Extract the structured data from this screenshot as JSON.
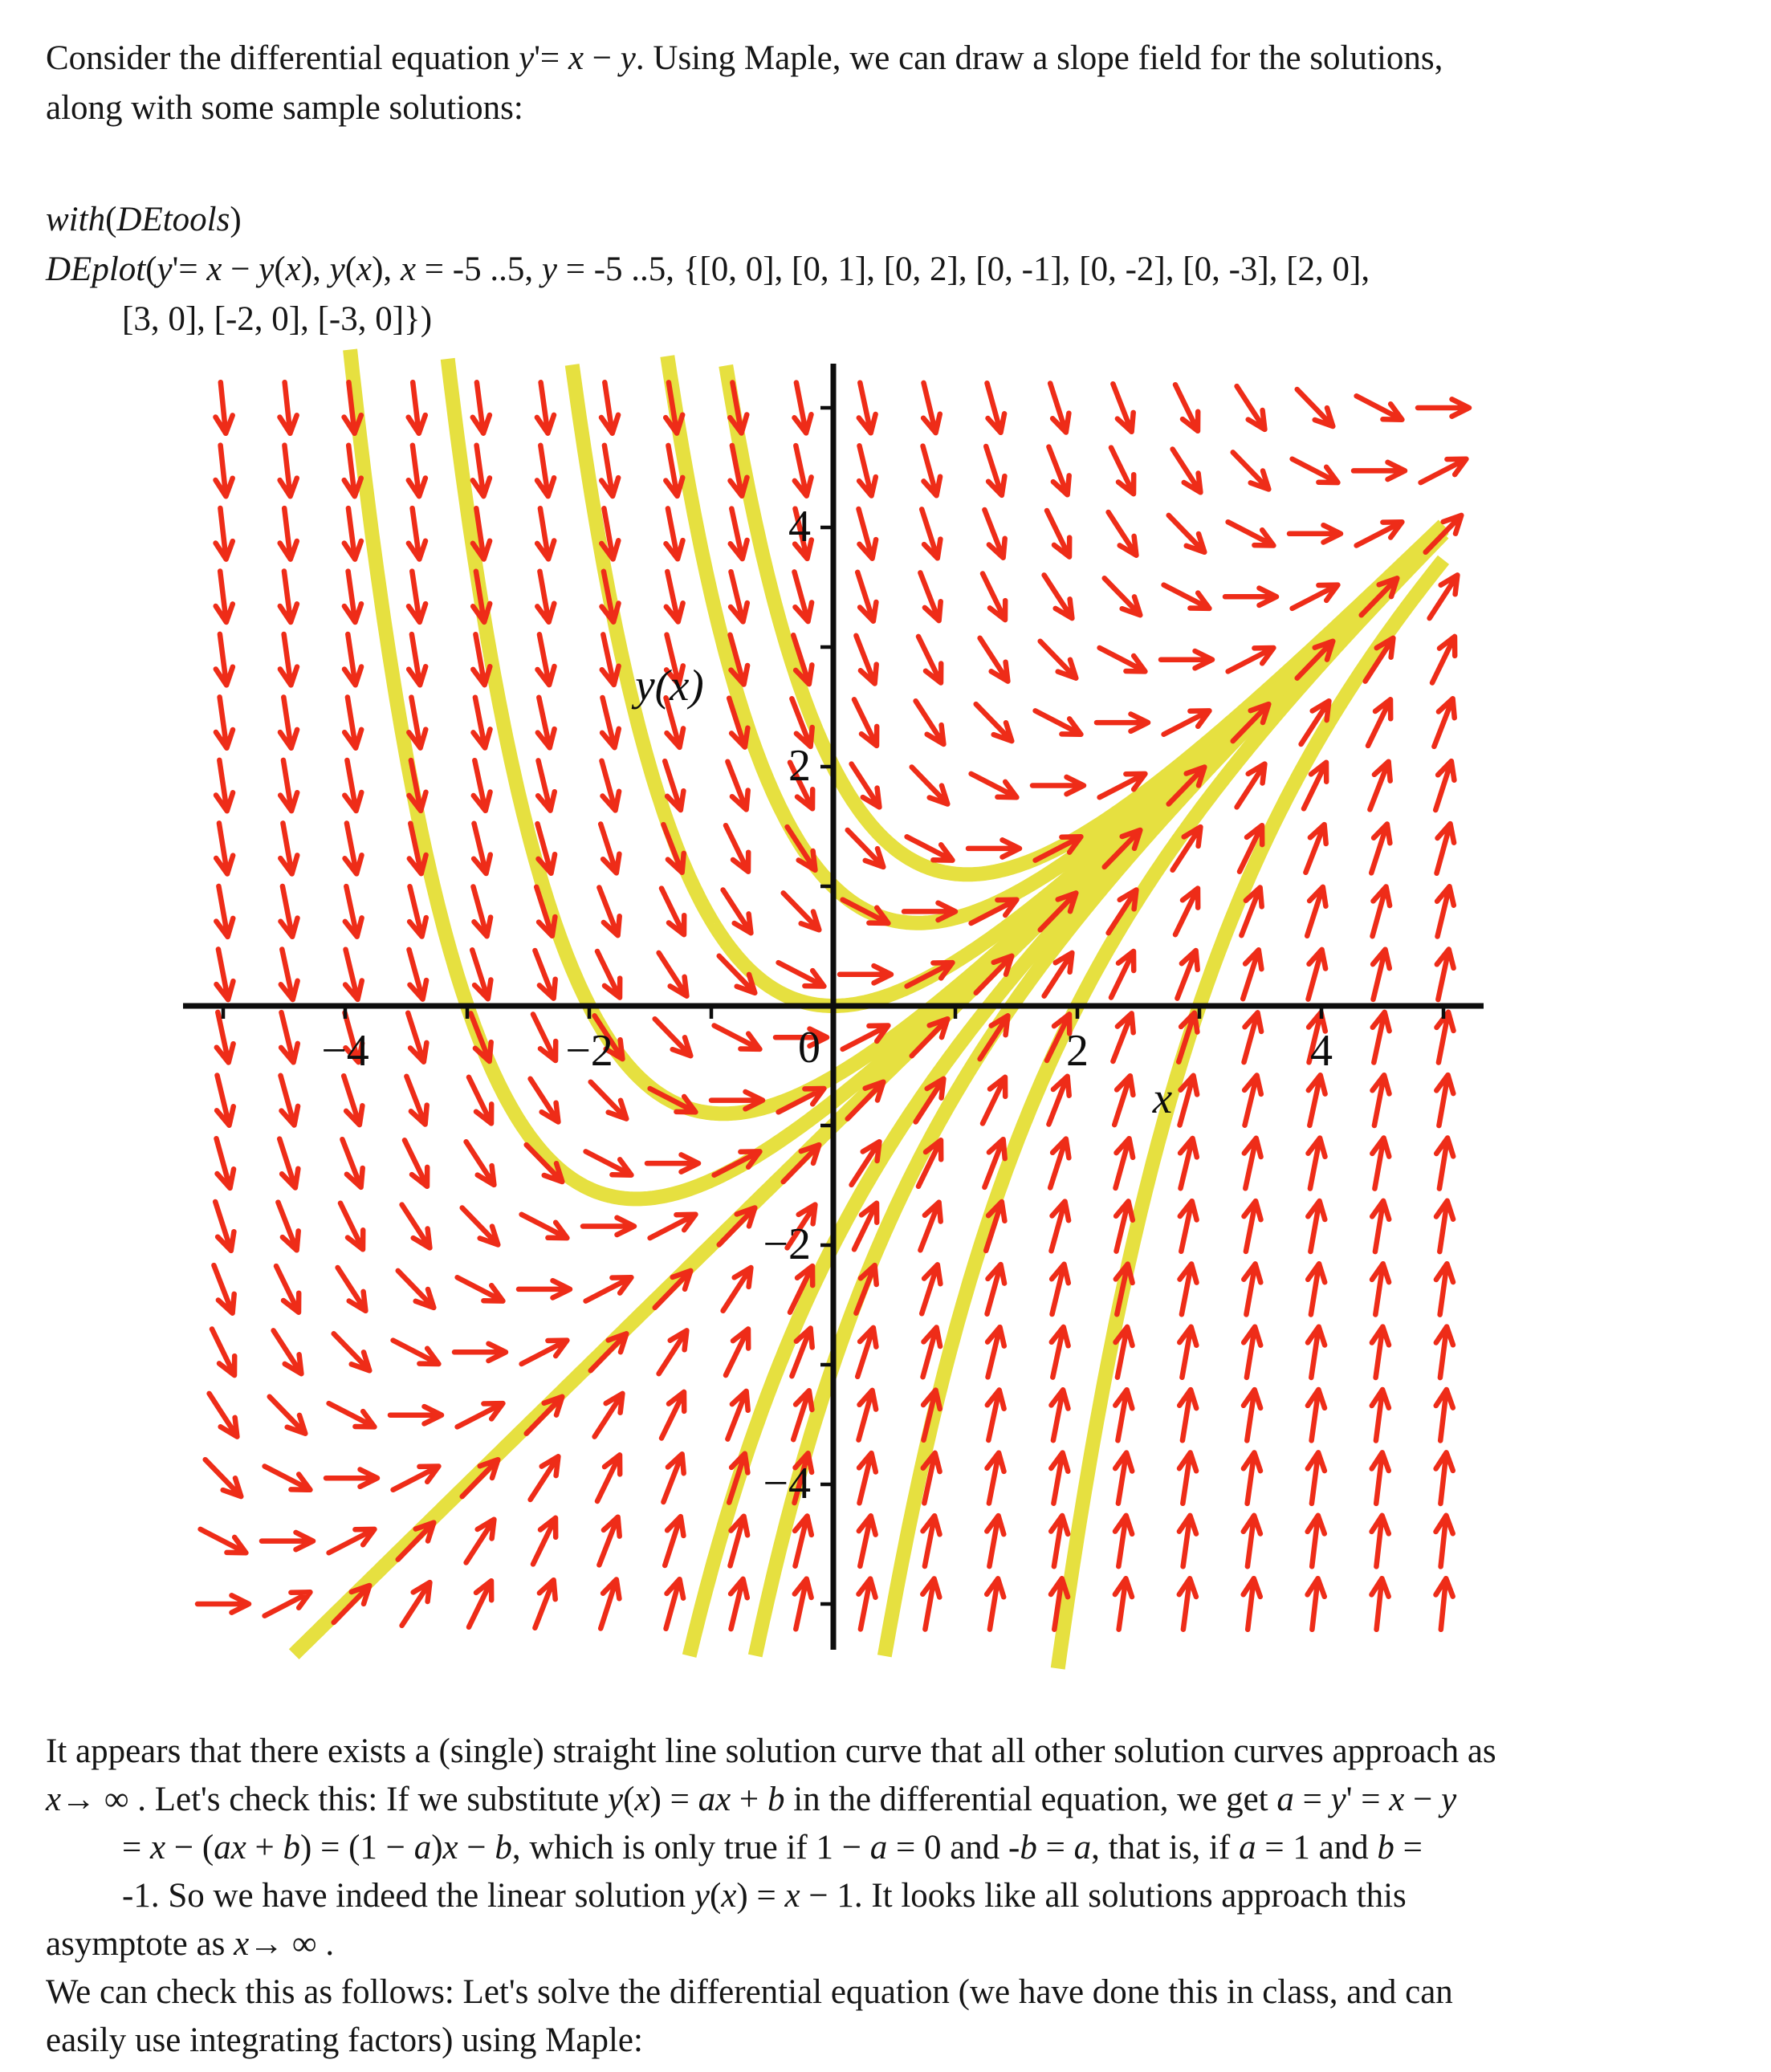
{
  "page": {
    "background": "#ffffff",
    "text_color": "#161616"
  },
  "intro": {
    "lines": [
      "Consider the differential equation <i>y</i>'= <i>x</i> − <i>y</i>. Using Maple, we can draw a slope field for the solutions,",
      "along with some sample solutions:"
    ]
  },
  "maple_input": {
    "lines": [
      "<i>with</i>(<i>DEtools</i>)",
      "<i>DEplot</i>(<i>y</i>'= <i>x</i> − <i>y</i>(<i>x</i>), <i>y</i>(<i>x</i>), <i>x</i> = -5 ..5, <i>y</i> = -5 ..5, {[0, 0], [0, 1], [0, 2], [0, -1], [0, -2], [0, -3], [2, 0],",
      "[3, 0], [-2, 0], [-3, 0]})"
    ]
  },
  "conclusion": {
    "lines": [
      "It appears that there exists a (single) straight line solution curve that all other solution curves approach as",
      "<i>x</i>→ ∞ . Let's check this: If we substitute <i>y</i>(<i>x</i>) = <i>ax</i> + <i>b</i> in the differential equation, we get <i>a</i> = <i>y</i>' = <i>x</i> − <i>y</i>",
      "= <i>x</i> − (<i>ax</i> + <i>b</i>) = (1 − <i>a</i>)<i>x</i> − <i>b</i>, which is only true if 1 − <i>a</i> = 0 and -<i>b</i> = <i>a</i>, that is, if <i>a</i> = 1 and <i>b</i> =",
      "-1. So we have indeed the linear solution <i>y</i>(<i>x</i>) = <i>x</i> − 1. It looks like all solutions approach this",
      "asymptote as <i>x</i>→ ∞ .",
      "We can check this as follows: Let's solve the differential equation (we have done this in class, and can",
      "easily use integrating factors) using Maple:"
    ]
  },
  "chart_data": {
    "type": "slope_field",
    "ode": "y' = x - y",
    "slope_expr": "x - y",
    "x_range": [
      -5,
      5
    ],
    "y_range": [
      -5,
      5
    ],
    "arrow_grid": [
      20,
      20
    ],
    "initial_conditions": [
      [
        0,
        0
      ],
      [
        0,
        1
      ],
      [
        0,
        2
      ],
      [
        0,
        -1
      ],
      [
        0,
        -2
      ],
      [
        0,
        -3
      ],
      [
        2,
        0
      ],
      [
        3,
        0
      ],
      [
        -2,
        0
      ],
      [
        -3,
        0
      ]
    ],
    "x_tick_labels": [
      -4,
      -2,
      0,
      2,
      4
    ],
    "y_tick_labels": [
      4,
      2,
      -2,
      -4
    ],
    "x_axis_label": "x",
    "y_axis_label": "y(x)",
    "arrow_color": "#ee2c18",
    "curve_color": "#e6e040",
    "axis_color": "#0d0d0d"
  }
}
